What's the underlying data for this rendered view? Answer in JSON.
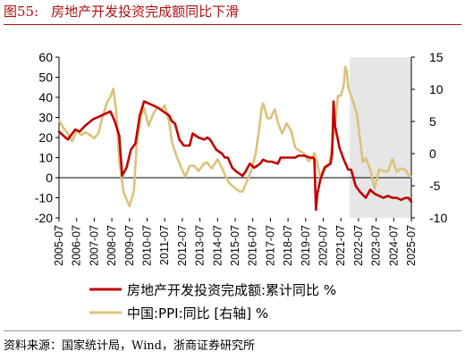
{
  "figure": {
    "number": "图55:",
    "title": "房地产开发投资完成额同比下滑",
    "source": "资料来源：国家统计局，Wind，浙商证券研究所"
  },
  "colors": {
    "primary": "#c00000",
    "secondary": "#dcc27a",
    "shade": "#e6e6e6",
    "title": "#b01010"
  },
  "chart_data": {
    "type": "line",
    "x_ticks": [
      "2005-07",
      "2006-07",
      "2007-07",
      "2008-07",
      "2009-07",
      "2010-07",
      "2011-07",
      "2012-07",
      "2013-07",
      "2014-07",
      "2015-07",
      "2016-07",
      "2017-07",
      "2018-07",
      "2019-07",
      "2020-07",
      "2021-07",
      "2022-07",
      "2023-07",
      "2024-07",
      "2025-07"
    ],
    "y_left": {
      "ticks": [
        "60",
        "50",
        "40",
        "30",
        "20",
        "10",
        "0",
        "-10",
        "-20"
      ],
      "range": [
        -20,
        60
      ]
    },
    "y_right": {
      "ticks": [
        "15",
        "10",
        "5",
        "0",
        "-5",
        "-10"
      ],
      "range": [
        -10,
        15
      ]
    },
    "shaded_region": {
      "from": "2022-01",
      "to": "2025-07"
    },
    "legend_position": "bottom",
    "series": [
      {
        "name": "房地产开发投资完成额:累计同比 %",
        "axis": "left",
        "points": [
          [
            "2005-07",
            23
          ],
          [
            "2006-01",
            19
          ],
          [
            "2006-06",
            24
          ],
          [
            "2006-09",
            23
          ],
          [
            "2007-01",
            26
          ],
          [
            "2007-06",
            29
          ],
          [
            "2007-09",
            30
          ],
          [
            "2007-12",
            31
          ],
          [
            "2008-03",
            32
          ],
          [
            "2008-06",
            33
          ],
          [
            "2008-09",
            28
          ],
          [
            "2008-12",
            21
          ],
          [
            "2009-02",
            1
          ],
          [
            "2009-05",
            5
          ],
          [
            "2009-08",
            14
          ],
          [
            "2009-11",
            17
          ],
          [
            "2010-02",
            31
          ],
          [
            "2010-05",
            38
          ],
          [
            "2010-08",
            37
          ],
          [
            "2010-11",
            36
          ],
          [
            "2011-02",
            35
          ],
          [
            "2011-06",
            33
          ],
          [
            "2011-10",
            31
          ],
          [
            "2011-12",
            28
          ],
          [
            "2012-02",
            27
          ],
          [
            "2012-05",
            19
          ],
          [
            "2012-08",
            16
          ],
          [
            "2012-12",
            16
          ],
          [
            "2013-02",
            22
          ],
          [
            "2013-06",
            20
          ],
          [
            "2013-10",
            19
          ],
          [
            "2013-12",
            20
          ],
          [
            "2014-02",
            19
          ],
          [
            "2014-06",
            14
          ],
          [
            "2014-10",
            12
          ],
          [
            "2014-12",
            10
          ],
          [
            "2015-02",
            10
          ],
          [
            "2015-05",
            5
          ],
          [
            "2015-08",
            3
          ],
          [
            "2015-12",
            1
          ],
          [
            "2016-02",
            3
          ],
          [
            "2016-05",
            7
          ],
          [
            "2016-08",
            5
          ],
          [
            "2016-12",
            7
          ],
          [
            "2017-02",
            9
          ],
          [
            "2017-05",
            8
          ],
          [
            "2017-08",
            8
          ],
          [
            "2017-12",
            7
          ],
          [
            "2018-02",
            10
          ],
          [
            "2018-05",
            10
          ],
          [
            "2018-08",
            10
          ],
          [
            "2018-12",
            10
          ],
          [
            "2019-02",
            11
          ],
          [
            "2019-06",
            11
          ],
          [
            "2019-10",
            10
          ],
          [
            "2019-12",
            10
          ],
          [
            "2020-01",
            9
          ],
          [
            "2020-02",
            -16
          ],
          [
            "2020-03",
            -8
          ],
          [
            "2020-05",
            -1
          ],
          [
            "2020-08",
            5
          ],
          [
            "2020-12",
            7
          ],
          [
            "2021-01",
            12
          ],
          [
            "2021-02",
            38
          ],
          [
            "2021-03",
            26
          ],
          [
            "2021-06",
            15
          ],
          [
            "2021-09",
            9
          ],
          [
            "2021-12",
            4
          ],
          [
            "2022-02",
            4
          ],
          [
            "2022-05",
            -4
          ],
          [
            "2022-08",
            -7
          ],
          [
            "2022-12",
            -10
          ],
          [
            "2023-03",
            -6
          ],
          [
            "2023-06",
            -8
          ],
          [
            "2023-09",
            -9
          ],
          [
            "2023-12",
            -10
          ],
          [
            "2024-03",
            -9
          ],
          [
            "2024-06",
            -10
          ],
          [
            "2024-09",
            -10
          ],
          [
            "2024-12",
            -11
          ],
          [
            "2025-03",
            -10
          ],
          [
            "2025-05",
            -10
          ],
          [
            "2025-07",
            -12
          ]
        ]
      },
      {
        "name": "中国:PPI:同比 [右轴] %",
        "axis": "right",
        "points": [
          [
            "2005-07",
            5.2
          ],
          [
            "2005-10",
            4.0
          ],
          [
            "2006-01",
            3.1
          ],
          [
            "2006-04",
            1.9
          ],
          [
            "2006-07",
            3.6
          ],
          [
            "2006-10",
            2.9
          ],
          [
            "2007-01",
            3.3
          ],
          [
            "2007-04",
            2.9
          ],
          [
            "2007-07",
            2.4
          ],
          [
            "2007-10",
            3.2
          ],
          [
            "2008-01",
            6.1
          ],
          [
            "2008-04",
            8.1
          ],
          [
            "2008-06",
            8.8
          ],
          [
            "2008-08",
            10.1
          ],
          [
            "2008-10",
            6.6
          ],
          [
            "2008-12",
            -1.1
          ],
          [
            "2009-03",
            -6.0
          ],
          [
            "2009-07",
            -8.2
          ],
          [
            "2009-10",
            -5.8
          ],
          [
            "2009-12",
            1.7
          ],
          [
            "2010-03",
            5.9
          ],
          [
            "2010-05",
            7.1
          ],
          [
            "2010-08",
            4.3
          ],
          [
            "2010-11",
            6.1
          ],
          [
            "2011-02",
            7.2
          ],
          [
            "2011-05",
            6.8
          ],
          [
            "2011-07",
            7.5
          ],
          [
            "2011-10",
            5.0
          ],
          [
            "2011-12",
            1.7
          ],
          [
            "2012-03",
            -0.3
          ],
          [
            "2012-06",
            -2.1
          ],
          [
            "2012-09",
            -3.6
          ],
          [
            "2012-12",
            -1.9
          ],
          [
            "2013-03",
            -1.9
          ],
          [
            "2013-06",
            -2.7
          ],
          [
            "2013-10",
            -1.5
          ],
          [
            "2013-12",
            -1.4
          ],
          [
            "2014-03",
            -2.3
          ],
          [
            "2014-07",
            -0.9
          ],
          [
            "2014-10",
            -2.2
          ],
          [
            "2014-12",
            -3.3
          ],
          [
            "2015-03",
            -4.6
          ],
          [
            "2015-07",
            -5.4
          ],
          [
            "2015-10",
            -5.9
          ],
          [
            "2015-12",
            -5.9
          ],
          [
            "2016-03",
            -4.3
          ],
          [
            "2016-06",
            -2.6
          ],
          [
            "2016-09",
            0.1
          ],
          [
            "2016-11",
            3.3
          ],
          [
            "2017-01",
            6.9
          ],
          [
            "2017-02",
            7.8
          ],
          [
            "2017-05",
            5.5
          ],
          [
            "2017-07",
            5.5
          ],
          [
            "2017-10",
            6.9
          ],
          [
            "2017-12",
            4.9
          ],
          [
            "2018-03",
            3.1
          ],
          [
            "2018-06",
            4.7
          ],
          [
            "2018-09",
            3.6
          ],
          [
            "2018-12",
            0.9
          ],
          [
            "2019-03",
            0.4
          ],
          [
            "2019-06",
            0.0
          ],
          [
            "2019-09",
            -1.2
          ],
          [
            "2019-12",
            -0.5
          ],
          [
            "2020-01",
            0.1
          ],
          [
            "2020-03",
            -1.5
          ],
          [
            "2020-05",
            -3.7
          ],
          [
            "2020-08",
            -2.0
          ],
          [
            "2020-11",
            -1.5
          ],
          [
            "2020-12",
            -0.4
          ],
          [
            "2021-03",
            4.4
          ],
          [
            "2021-05",
            9.0
          ],
          [
            "2021-07",
            9.0
          ],
          [
            "2021-09",
            10.7
          ],
          [
            "2021-10",
            13.5
          ],
          [
            "2021-11",
            12.9
          ],
          [
            "2021-12",
            10.3
          ],
          [
            "2022-03",
            8.3
          ],
          [
            "2022-06",
            6.1
          ],
          [
            "2022-08",
            2.3
          ],
          [
            "2022-10",
            -1.3
          ],
          [
            "2022-12",
            -0.7
          ],
          [
            "2023-03",
            -2.5
          ],
          [
            "2023-06",
            -5.4
          ],
          [
            "2023-09",
            -2.5
          ],
          [
            "2023-12",
            -2.7
          ],
          [
            "2024-03",
            -2.8
          ],
          [
            "2024-06",
            -0.8
          ],
          [
            "2024-09",
            -2.8
          ],
          [
            "2024-12",
            -2.3
          ],
          [
            "2025-03",
            -2.5
          ],
          [
            "2025-05",
            -3.3
          ],
          [
            "2025-07",
            -3.6
          ]
        ]
      }
    ]
  }
}
